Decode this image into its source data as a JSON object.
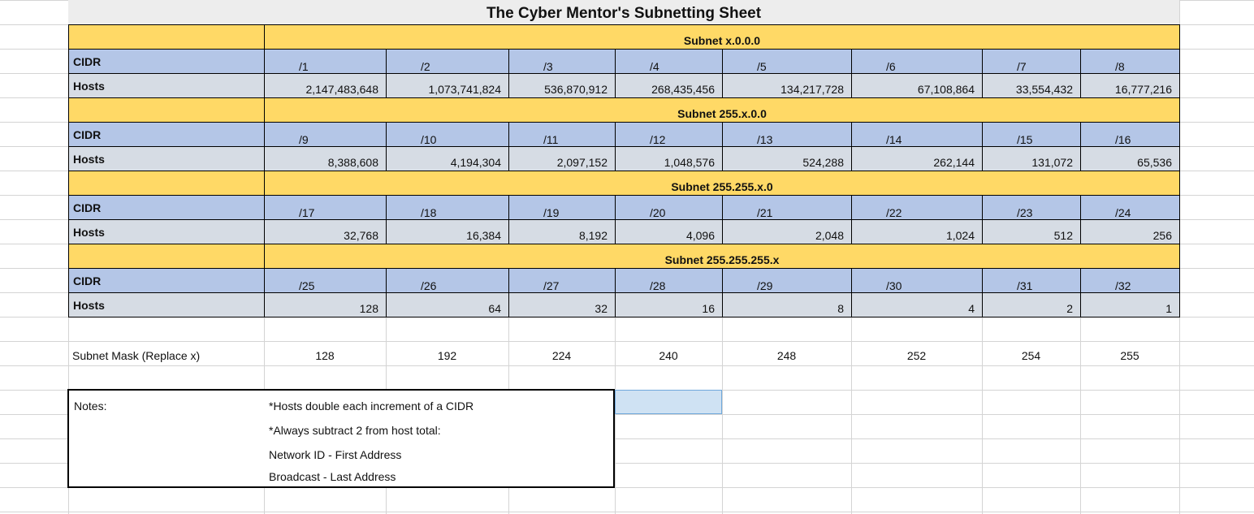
{
  "sheet": {
    "title": "The Cyber Mentor's Subnetting Sheet",
    "row_labels": {
      "cidr": "CIDR",
      "hosts": "Hosts"
    },
    "blocks": [
      {
        "subnet": "Subnet x.0.0.0",
        "cidr": [
          "/1",
          "/2",
          "/3",
          "/4",
          "/5",
          "/6",
          "/7",
          "/8"
        ],
        "hosts": [
          "2,147,483,648",
          "1,073,741,824",
          "536,870,912",
          "268,435,456",
          "134,217,728",
          "67,108,864",
          "33,554,432",
          "16,777,216"
        ]
      },
      {
        "subnet": "Subnet 255.x.0.0",
        "cidr": [
          "/9",
          "/10",
          "/11",
          "/12",
          "/13",
          "/14",
          "/15",
          "/16"
        ],
        "hosts": [
          "8,388,608",
          "4,194,304",
          "2,097,152",
          "1,048,576",
          "524,288",
          "262,144",
          "131,072",
          "65,536"
        ]
      },
      {
        "subnet": "Subnet 255.255.x.0",
        "cidr": [
          "/17",
          "/18",
          "/19",
          "/20",
          "/21",
          "/22",
          "/23",
          "/24"
        ],
        "hosts": [
          "32,768",
          "16,384",
          "8,192",
          "4,096",
          "2,048",
          "1,024",
          "512",
          "256"
        ]
      },
      {
        "subnet": "Subnet 255.255.255.x",
        "cidr": [
          "/25",
          "/26",
          "/27",
          "/28",
          "/29",
          "/30",
          "/31",
          "/32"
        ],
        "hosts": [
          "128",
          "64",
          "32",
          "16",
          "8",
          "4",
          "2",
          "1"
        ]
      }
    ],
    "subnet_mask": {
      "label": "Subnet Mask (Replace x)",
      "values": [
        "128",
        "192",
        "224",
        "240",
        "248",
        "252",
        "254",
        "255"
      ]
    },
    "notes": {
      "label": "Notes:",
      "lines": [
        "*Hosts double each increment of a CIDR",
        "*Always subtract 2 from host total:",
        "Network ID - First Address",
        "Broadcast - Last Address"
      ]
    },
    "colors": {
      "subnet_band": "#ffd966",
      "cidr_row": "#b4c6e7",
      "hosts_row": "#d6dce4",
      "selection": "#cfe2f3"
    }
  }
}
